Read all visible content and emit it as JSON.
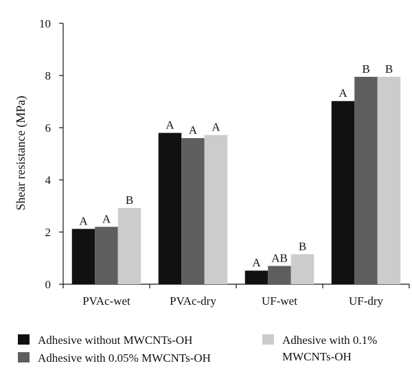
{
  "chart_data": {
    "type": "bar",
    "ylabel": "Shear resistance (MPa)",
    "xlabel": "",
    "ylim": [
      0,
      10
    ],
    "yticks": [
      0,
      2,
      4,
      6,
      8,
      10
    ],
    "categories": [
      "PVAc-wet",
      "PVAc-dry",
      "UF-wet",
      "UF-dry"
    ],
    "series": [
      {
        "name": "Adhesive without MWCNTs-OH",
        "color": "#111111",
        "values": [
          2.12,
          5.8,
          0.52,
          7.02
        ],
        "labels": [
          "A",
          "A",
          "A",
          "A"
        ]
      },
      {
        "name": "Adhesive with 0.05% MWCNTs-OH",
        "color": "#5e5e5e",
        "values": [
          2.2,
          5.6,
          0.7,
          7.95
        ],
        "labels": [
          "A",
          "A",
          "AB",
          "B"
        ]
      },
      {
        "name": "Adhesive with 0.1% MWCNTs-OH",
        "color": "#cccccc",
        "values": [
          2.92,
          5.72,
          1.15,
          7.95
        ],
        "labels": [
          "B",
          "A",
          "B",
          "B"
        ]
      }
    ],
    "legend_position": "bottom",
    "grid": false
  }
}
